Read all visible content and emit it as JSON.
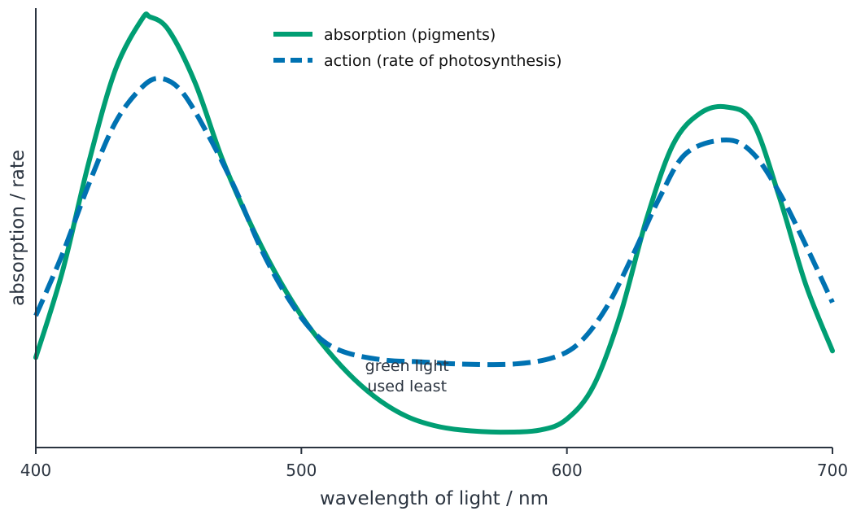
{
  "chart_data": {
    "type": "line",
    "xlabel": "wavelength of light / nm",
    "ylabel": "absorption / rate",
    "xlim": [
      400,
      700
    ],
    "ylim": [
      0,
      1
    ],
    "x_ticks": [
      "400",
      "500",
      "600",
      "700"
    ],
    "legend_position": "top-center",
    "grid": false,
    "series": [
      {
        "name": "absorption (pigments)",
        "color": "#009E73",
        "style": "solid",
        "x": [
          400,
          410,
          420,
          430,
          440,
          443,
          450,
          460,
          470,
          480,
          490,
          500,
          510,
          520,
          530,
          540,
          550,
          560,
          575,
          590,
          600,
          610,
          620,
          630,
          640,
          650,
          660,
          670,
          680,
          690,
          700
        ],
        "y": [
          0.205,
          0.4,
          0.65,
          0.86,
          0.975,
          0.98,
          0.95,
          0.83,
          0.66,
          0.52,
          0.4,
          0.3,
          0.22,
          0.155,
          0.105,
          0.07,
          0.05,
          0.04,
          0.035,
          0.04,
          0.065,
          0.14,
          0.3,
          0.52,
          0.69,
          0.76,
          0.775,
          0.74,
          0.57,
          0.37,
          0.22
        ]
      },
      {
        "name": "action (rate of photosynthesis)",
        "color": "#0072B2",
        "style": "dashed",
        "x": [
          400,
          410,
          420,
          430,
          440,
          447,
          455,
          465,
          475,
          485,
          495,
          505,
          515,
          530,
          545,
          560,
          580,
          595,
          605,
          615,
          625,
          635,
          645,
          660,
          670,
          680,
          690,
          700
        ],
        "y": [
          0.3,
          0.44,
          0.6,
          0.74,
          0.82,
          0.84,
          0.81,
          0.71,
          0.59,
          0.45,
          0.34,
          0.26,
          0.22,
          0.2,
          0.195,
          0.19,
          0.19,
          0.205,
          0.24,
          0.32,
          0.44,
          0.57,
          0.67,
          0.7,
          0.67,
          0.58,
          0.46,
          0.33
        ]
      }
    ],
    "annotations": [
      {
        "lines": [
          "green light",
          "used least"
        ],
        "x": 545,
        "y": 0.18
      }
    ]
  }
}
